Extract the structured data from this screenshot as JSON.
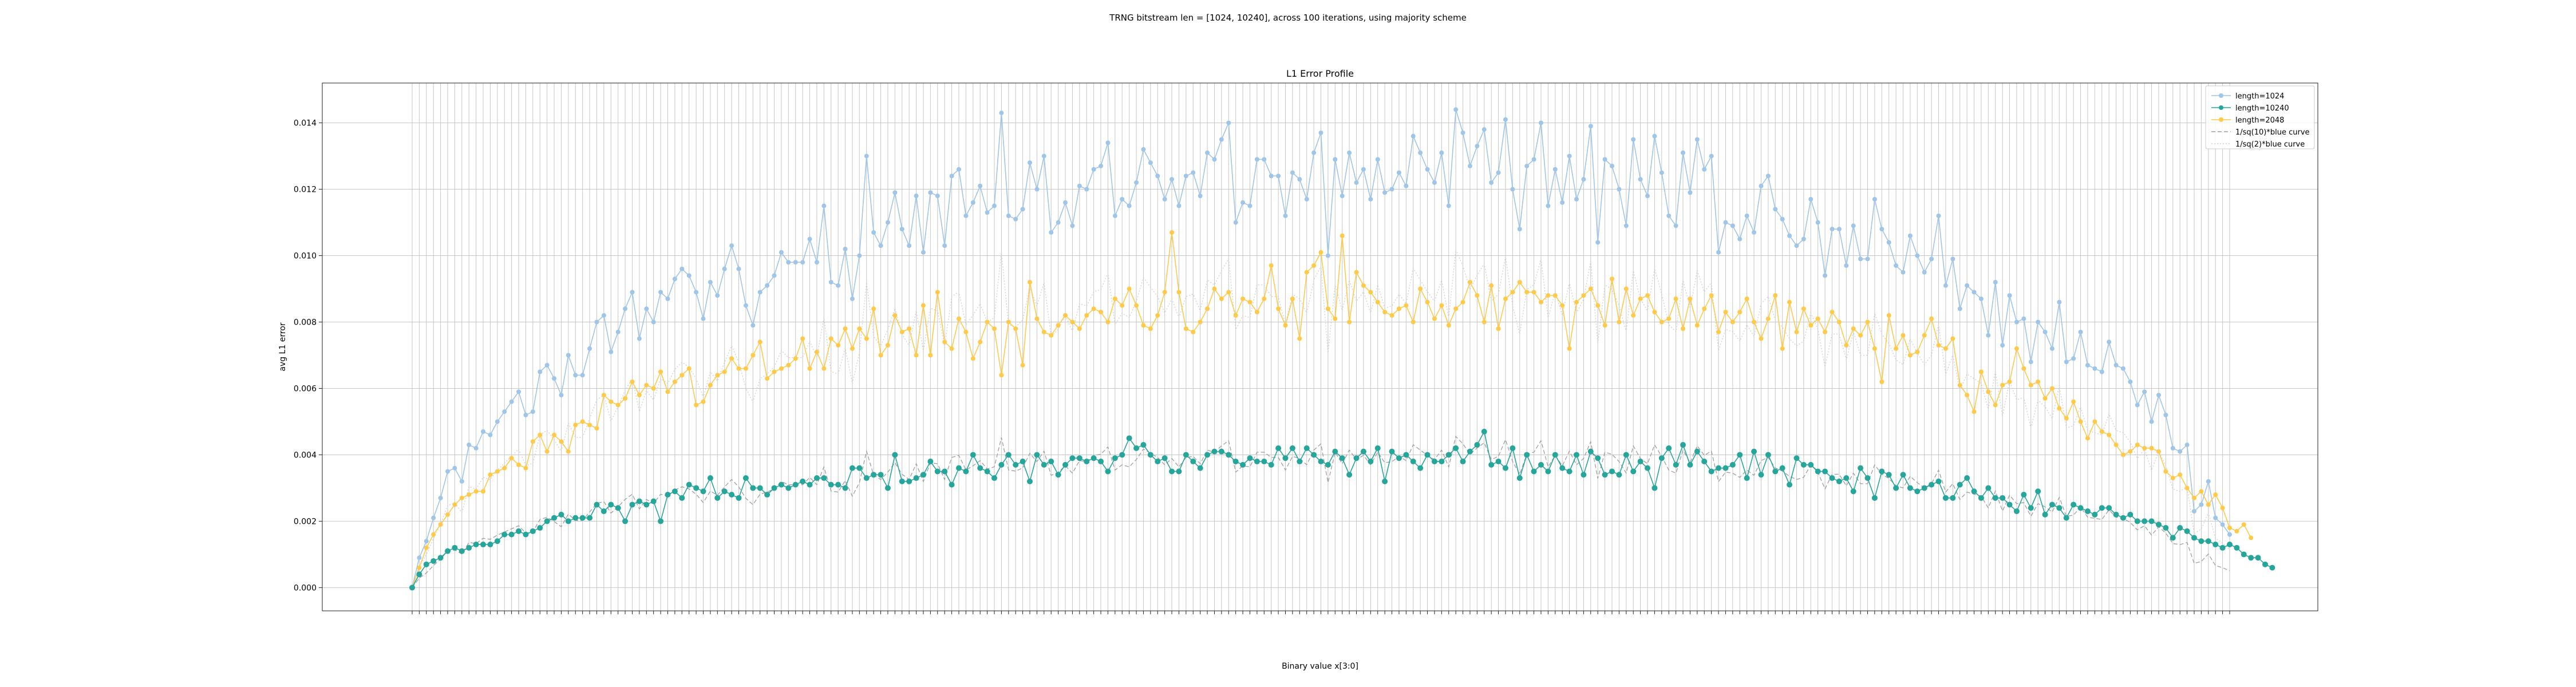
{
  "figure": {
    "suptitle": "TRNG bitstream len = [1024, 10240], across 100 iterations, using majority scheme"
  },
  "chart_data": {
    "type": "line",
    "title": "L1 Error Profile",
    "xlabel": "Binary value x[3:0]",
    "ylabel": "avg L1 error",
    "ylim": [
      -0.0007,
      0.0152
    ],
    "yticks": [
      0.0,
      0.002,
      0.004,
      0.006,
      0.008,
      0.01,
      0.012,
      0.014
    ],
    "ytick_labels": [
      "0.000",
      "0.002",
      "0.004",
      "0.006",
      "0.008",
      "0.010",
      "0.012",
      "0.014"
    ],
    "grid": true,
    "legend_position": "top-right",
    "x_label_note": "256 category ticks, labelled with binary strings (unreadable in source)",
    "series": [
      {
        "name": "length=1024",
        "color": "#9fc5e8",
        "marker": "circle",
        "values": [
          0.0,
          0.0009,
          0.0014,
          0.0021,
          0.0027,
          0.0035,
          0.0036,
          0.0032,
          0.0043,
          0.0042,
          0.0047,
          0.0046,
          0.005,
          0.0053,
          0.0056,
          0.0059,
          0.0052,
          0.0053,
          0.0065,
          0.0067,
          0.0063,
          0.0058,
          0.007,
          0.0064,
          0.0064,
          0.0072,
          0.008,
          0.0082,
          0.0071,
          0.0077,
          0.0084,
          0.0089,
          0.0075,
          0.0084,
          0.008,
          0.0089,
          0.0087,
          0.0093,
          0.0096,
          0.0094,
          0.0089,
          0.0081,
          0.0092,
          0.0088,
          0.0096,
          0.0103,
          0.0096,
          0.0085,
          0.0079,
          0.0089,
          0.0091,
          0.0094,
          0.0101,
          0.0098,
          0.0098,
          0.0098,
          0.0105,
          0.0098,
          0.0115,
          0.0092,
          0.0091,
          0.0102,
          0.0087,
          0.01,
          0.013,
          0.0107,
          0.0103,
          0.011,
          0.0119,
          0.0108,
          0.0103,
          0.0118,
          0.0101,
          0.0119,
          0.0118,
          0.0103,
          0.0124,
          0.0126,
          0.0112,
          0.0116,
          0.0121,
          0.0113,
          0.0115,
          0.0143,
          0.0112,
          0.0111,
          0.0114,
          0.0128,
          0.012,
          0.013,
          0.0107,
          0.011,
          0.0116,
          0.0109,
          0.0121,
          0.012,
          0.0126,
          0.0127,
          0.0134,
          0.0112,
          0.0117,
          0.0115,
          0.0122,
          0.0132,
          0.0128,
          0.0124,
          0.0117,
          0.0123,
          0.0115,
          0.0124,
          0.0125,
          0.0118,
          0.0131,
          0.0129,
          0.0135,
          0.014,
          0.011,
          0.0116,
          0.0115,
          0.0129,
          0.0129,
          0.0124,
          0.0124,
          0.0112,
          0.0125,
          0.0123,
          0.0117,
          0.0131,
          0.0137,
          0.01,
          0.0129,
          0.0118,
          0.0131,
          0.0122,
          0.0126,
          0.0117,
          0.0129,
          0.0119,
          0.012,
          0.0125,
          0.0121,
          0.0136,
          0.0131,
          0.0126,
          0.0122,
          0.0131,
          0.0115,
          0.0144,
          0.0137,
          0.0127,
          0.0133,
          0.0138,
          0.0122,
          0.0125,
          0.0141,
          0.012,
          0.0108,
          0.0127,
          0.0129,
          0.014,
          0.0115,
          0.0126,
          0.0116,
          0.013,
          0.0117,
          0.0123,
          0.0139,
          0.0104,
          0.0129,
          0.0127,
          0.012,
          0.0109,
          0.0135,
          0.0123,
          0.0118,
          0.0136,
          0.0125,
          0.0112,
          0.0109,
          0.0131,
          0.0119,
          0.0135,
          0.0126,
          0.013,
          0.0101,
          0.011,
          0.0109,
          0.0105,
          0.0112,
          0.0107,
          0.0121,
          0.0124,
          0.0114,
          0.0111,
          0.0106,
          0.0103,
          0.0105,
          0.0117,
          0.011,
          0.0094,
          0.0108,
          0.0108,
          0.0097,
          0.0109,
          0.0099,
          0.0099,
          0.0117,
          0.0108,
          0.0104,
          0.0097,
          0.0095,
          0.0106,
          0.01,
          0.0095,
          0.0099,
          0.0112,
          0.0091,
          0.0099,
          0.0084,
          0.0091,
          0.0089,
          0.0087,
          0.0076,
          0.0092,
          0.0073,
          0.0088,
          0.008,
          0.0081,
          0.0068,
          0.008,
          0.0077,
          0.0072,
          0.0086,
          0.0068,
          0.0069,
          0.0077,
          0.0067,
          0.0066,
          0.0065,
          0.0074,
          0.0067,
          0.0066,
          0.0062,
          0.0055,
          0.0059,
          0.005,
          0.0058,
          0.0052,
          0.0042,
          0.0041,
          0.0043,
          0.0023,
          0.0025,
          0.0032,
          0.0021,
          0.0019,
          0.0016
        ]
      },
      {
        "name": "length=10240",
        "color": "#26a69a",
        "marker": "circle",
        "values": [
          0.0,
          0.0004,
          0.0007,
          0.0008,
          0.0009,
          0.0011,
          0.0012,
          0.0011,
          0.0012,
          0.0013,
          0.0013,
          0.0013,
          0.0014,
          0.0016,
          0.0016,
          0.0017,
          0.0016,
          0.0017,
          0.0018,
          0.002,
          0.0021,
          0.0022,
          0.002,
          0.0021,
          0.0021,
          0.0021,
          0.0025,
          0.0023,
          0.0025,
          0.0024,
          0.002,
          0.0025,
          0.0026,
          0.0025,
          0.0026,
          0.002,
          0.0028,
          0.0029,
          0.0027,
          0.0031,
          0.003,
          0.0029,
          0.0033,
          0.0027,
          0.0029,
          0.0028,
          0.0027,
          0.0033,
          0.003,
          0.003,
          0.0028,
          0.003,
          0.0031,
          0.003,
          0.0031,
          0.0032,
          0.0031,
          0.0033,
          0.0033,
          0.0031,
          0.0031,
          0.003,
          0.0036,
          0.0036,
          0.0033,
          0.0034,
          0.0034,
          0.003,
          0.004,
          0.0032,
          0.0032,
          0.0033,
          0.0034,
          0.0038,
          0.0035,
          0.0035,
          0.0031,
          0.0036,
          0.0035,
          0.004,
          0.0036,
          0.0035,
          0.0033,
          0.0037,
          0.004,
          0.0037,
          0.0038,
          0.0032,
          0.004,
          0.0037,
          0.0038,
          0.0034,
          0.0037,
          0.0039,
          0.0039,
          0.0038,
          0.0039,
          0.0038,
          0.0035,
          0.0039,
          0.004,
          0.0045,
          0.0042,
          0.0043,
          0.004,
          0.0038,
          0.0039,
          0.0035,
          0.0035,
          0.004,
          0.0038,
          0.0036,
          0.004,
          0.0041,
          0.0041,
          0.004,
          0.0038,
          0.0037,
          0.0039,
          0.0038,
          0.0038,
          0.0037,
          0.0042,
          0.0039,
          0.0042,
          0.0038,
          0.0042,
          0.004,
          0.0038,
          0.0037,
          0.0041,
          0.0039,
          0.0034,
          0.0039,
          0.0041,
          0.0038,
          0.0042,
          0.0032,
          0.0041,
          0.0039,
          0.004,
          0.0038,
          0.0036,
          0.004,
          0.0038,
          0.0038,
          0.004,
          0.0042,
          0.0038,
          0.0041,
          0.0043,
          0.0047,
          0.0037,
          0.0038,
          0.0036,
          0.0042,
          0.0033,
          0.004,
          0.0035,
          0.0037,
          0.0035,
          0.004,
          0.0036,
          0.0035,
          0.004,
          0.0034,
          0.0041,
          0.0039,
          0.0034,
          0.0035,
          0.0034,
          0.004,
          0.0035,
          0.0038,
          0.0036,
          0.003,
          0.0039,
          0.0042,
          0.0037,
          0.0043,
          0.0037,
          0.0041,
          0.0038,
          0.0035,
          0.0036,
          0.0036,
          0.0037,
          0.004,
          0.0033,
          0.0041,
          0.0034,
          0.004,
          0.0035,
          0.0036,
          0.0031,
          0.0039,
          0.0037,
          0.0037,
          0.0035,
          0.0035,
          0.0033,
          0.0032,
          0.0033,
          0.0029,
          0.0036,
          0.0033,
          0.0027,
          0.0035,
          0.0034,
          0.003,
          0.0034,
          0.003,
          0.0029,
          0.003,
          0.0031,
          0.0032,
          0.0027,
          0.0027,
          0.0031,
          0.0033,
          0.0029,
          0.0027,
          0.003,
          0.0027,
          0.0027,
          0.0025,
          0.0023,
          0.0028,
          0.0024,
          0.0029,
          0.0022,
          0.0025,
          0.0024,
          0.0021,
          0.0025,
          0.0024,
          0.0023,
          0.0022,
          0.0024,
          0.0024,
          0.0022,
          0.0021,
          0.0022,
          0.002,
          0.002,
          0.002,
          0.0019,
          0.0018,
          0.0015,
          0.0018,
          0.0017,
          0.0015,
          0.0014,
          0.0014,
          0.0013,
          0.0012,
          0.0013,
          0.0012,
          0.001,
          0.0009,
          0.0009,
          0.0007,
          0.0006
        ]
      },
      {
        "name": "length=2048",
        "color": "#ffc94a",
        "marker": "circle",
        "values": [
          0.0,
          0.0006,
          0.0012,
          0.0016,
          0.0019,
          0.0022,
          0.0025,
          0.0027,
          0.0028,
          0.0029,
          0.0029,
          0.0034,
          0.0035,
          0.0036,
          0.0039,
          0.0037,
          0.0036,
          0.0044,
          0.0046,
          0.0041,
          0.0046,
          0.0044,
          0.0041,
          0.0049,
          0.005,
          0.0049,
          0.0048,
          0.0058,
          0.0056,
          0.0055,
          0.0057,
          0.0062,
          0.0058,
          0.0061,
          0.006,
          0.0065,
          0.0059,
          0.0062,
          0.0064,
          0.0066,
          0.0055,
          0.0056,
          0.0061,
          0.0064,
          0.0065,
          0.0069,
          0.0066,
          0.0066,
          0.007,
          0.0074,
          0.0063,
          0.0065,
          0.0066,
          0.0067,
          0.0069,
          0.0075,
          0.0066,
          0.0071,
          0.0066,
          0.0075,
          0.0073,
          0.0078,
          0.0072,
          0.0078,
          0.0075,
          0.0084,
          0.007,
          0.0073,
          0.0082,
          0.0077,
          0.0078,
          0.007,
          0.0085,
          0.007,
          0.0089,
          0.0074,
          0.0072,
          0.0081,
          0.0077,
          0.0069,
          0.0074,
          0.008,
          0.0078,
          0.0064,
          0.008,
          0.0078,
          0.0067,
          0.0092,
          0.0081,
          0.0077,
          0.0076,
          0.0079,
          0.0082,
          0.008,
          0.0078,
          0.0082,
          0.0084,
          0.0083,
          0.008,
          0.0087,
          0.0085,
          0.009,
          0.0085,
          0.0079,
          0.0078,
          0.0082,
          0.0089,
          0.0107,
          0.0089,
          0.0078,
          0.0077,
          0.008,
          0.0084,
          0.009,
          0.0087,
          0.0089,
          0.0082,
          0.0087,
          0.0086,
          0.0083,
          0.0087,
          0.0097,
          0.0084,
          0.0079,
          0.0087,
          0.0075,
          0.0095,
          0.0097,
          0.0101,
          0.0084,
          0.0081,
          0.0106,
          0.008,
          0.0095,
          0.0091,
          0.0089,
          0.0086,
          0.0083,
          0.0082,
          0.0084,
          0.0085,
          0.008,
          0.009,
          0.0086,
          0.0081,
          0.0085,
          0.0079,
          0.0084,
          0.0086,
          0.0092,
          0.0088,
          0.008,
          0.0091,
          0.0078,
          0.0087,
          0.0089,
          0.0092,
          0.0089,
          0.0089,
          0.0086,
          0.0088,
          0.0088,
          0.0085,
          0.0072,
          0.0086,
          0.0088,
          0.009,
          0.0085,
          0.0079,
          0.0093,
          0.008,
          0.009,
          0.0082,
          0.0087,
          0.0088,
          0.0083,
          0.008,
          0.0081,
          0.0087,
          0.0078,
          0.0087,
          0.0079,
          0.0084,
          0.0088,
          0.0077,
          0.0083,
          0.008,
          0.0083,
          0.0087,
          0.008,
          0.0075,
          0.0081,
          0.0088,
          0.0072,
          0.0086,
          0.0077,
          0.0084,
          0.0079,
          0.0081,
          0.0077,
          0.0083,
          0.008,
          0.0073,
          0.0078,
          0.0076,
          0.008,
          0.0072,
          0.0062,
          0.0082,
          0.0072,
          0.0076,
          0.007,
          0.0071,
          0.0076,
          0.0081,
          0.0073,
          0.0072,
          0.0075,
          0.0061,
          0.0058,
          0.0053,
          0.0065,
          0.0059,
          0.0055,
          0.0061,
          0.0062,
          0.0072,
          0.0066,
          0.0061,
          0.0062,
          0.0057,
          0.006,
          0.0054,
          0.0051,
          0.0056,
          0.005,
          0.0045,
          0.005,
          0.0047,
          0.0046,
          0.0043,
          0.004,
          0.0041,
          0.0043,
          0.0042,
          0.0042,
          0.0041,
          0.0035,
          0.0033,
          0.0034,
          0.003,
          0.0027,
          0.0029,
          0.0025,
          0.0028,
          0.0024,
          0.0018,
          0.0017,
          0.0019,
          0.0015
        ]
      },
      {
        "name": "1/sq(10)*blue curve",
        "color": "#9e9e9e",
        "linestyle": "dashed",
        "derived_from": "length=1024",
        "factor": 0.316228
      },
      {
        "name": "1/sq(2)*blue curve",
        "color": "#cfcfcf",
        "linestyle": "dotted",
        "derived_from": "length=1024",
        "factor": 0.707107
      }
    ]
  }
}
